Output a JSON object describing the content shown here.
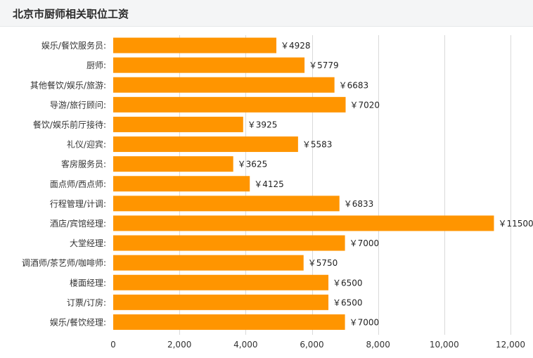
{
  "header": {
    "title": "北京市厨师相关职位工资"
  },
  "colors": {
    "bar": "#ff9500",
    "grid": "#d9d9d9",
    "axis_text": "#333333"
  },
  "chart_data": {
    "type": "bar",
    "orientation": "horizontal",
    "title": "北京市厨师相关职位工资",
    "categories": [
      "娱乐/餐饮服务员:",
      "厨师:",
      "其他餐饮/娱乐/旅游:",
      "导游/旅行顾问:",
      "餐饮/娱乐前厅接待:",
      "礼仪/迎宾:",
      "客房服务员:",
      "面点师/西点师:",
      "行程管理/计调:",
      "酒店/宾馆经理:",
      "大堂经理:",
      "调酒师/茶艺师/咖啡师:",
      "楼面经理:",
      "订票/订房:",
      "娱乐/餐饮经理:"
    ],
    "values": [
      4928,
      5779,
      6683,
      7020,
      3925,
      5583,
      3625,
      4125,
      6833,
      11500,
      7000,
      5750,
      6500,
      6500,
      7000
    ],
    "value_labels": [
      "￥4928",
      "￥5779",
      "￥6683",
      "￥7020",
      "￥3925",
      "￥5583",
      "￥3625",
      "￥4125",
      "￥6833",
      "￥11500",
      "￥7000",
      "￥5750",
      "￥6500",
      "￥6500",
      "￥7000"
    ],
    "xlim": [
      0,
      12000
    ],
    "xticks": [
      0,
      2000,
      4000,
      6000,
      8000,
      10000,
      12000
    ],
    "xtick_labels": [
      "0",
      "2,000",
      "4,000",
      "6,000",
      "8,000",
      "10,000",
      "12,000"
    ],
    "grid": true,
    "legend": "none"
  }
}
